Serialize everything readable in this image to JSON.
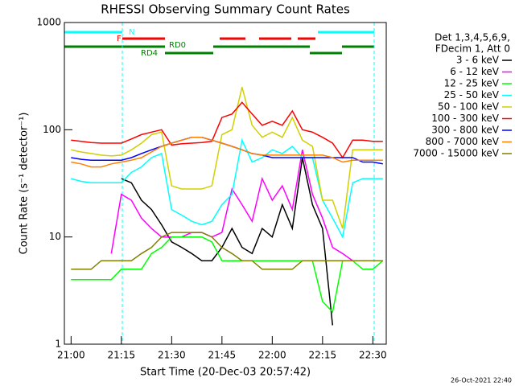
{
  "chart_data": {
    "type": "line",
    "title": "RHESSI Observing Summary Count Rates",
    "x_label": "Start Time (20-Dec-03 20:57:42)",
    "y_label": "Count Rate (s⁻¹ detector⁻¹)",
    "legend_header": [
      "Det 1,3,4,5,6,9,",
      "FDecim 1, Att 0"
    ],
    "annotations": {
      "N": "N",
      "F": "F",
      "RD0": "RD0",
      "RD4": "RD4",
      "date": "26-Oct-2021 22:40"
    },
    "log_y": true,
    "xlim": [
      "20:58",
      "22:34"
    ],
    "xticks": [
      "21:00",
      "21:15",
      "21:30",
      "21:45",
      "22:00",
      "22:15",
      "22:30"
    ],
    "ylim": [
      1,
      1000
    ],
    "yticks": [
      1,
      10,
      100,
      1000
    ],
    "x": [
      "21:00",
      "21:03",
      "21:06",
      "21:09",
      "21:12",
      "21:15",
      "21:18",
      "21:21",
      "21:24",
      "21:27",
      "21:30",
      "21:33",
      "21:36",
      "21:39",
      "21:42",
      "21:45",
      "21:48",
      "21:51",
      "21:54",
      "21:57",
      "22:00",
      "22:03",
      "22:06",
      "22:09",
      "22:12",
      "22:15",
      "22:18",
      "22:21",
      "22:24",
      "22:27",
      "22:30",
      "22:33"
    ],
    "series": [
      {
        "name": "3 - 6 keV",
        "color": "#000000",
        "values": [
          null,
          null,
          null,
          null,
          null,
          35,
          32,
          22,
          18,
          13,
          9,
          8,
          7,
          6,
          6,
          8,
          12,
          8,
          7,
          12,
          10,
          20,
          12,
          55,
          20,
          12,
          1.5,
          null,
          null,
          null,
          null,
          null
        ]
      },
      {
        "name": "6 - 12 keV",
        "color": "#ff00ff",
        "values": [
          null,
          null,
          null,
          null,
          7,
          25,
          22,
          15,
          12,
          10,
          10,
          10,
          11,
          11,
          10,
          11,
          28,
          20,
          14,
          35,
          22,
          30,
          18,
          65,
          25,
          15,
          8,
          7,
          6,
          6,
          6,
          6
        ]
      },
      {
        "name": "12 - 25 keV",
        "color": "#00ff00",
        "values": [
          4,
          4,
          4,
          4,
          4,
          5,
          5,
          5,
          7,
          8,
          10,
          10,
          10,
          10,
          9,
          6,
          6,
          6,
          6,
          6,
          6,
          6,
          6,
          6,
          6,
          2.5,
          2,
          6,
          6,
          5,
          5,
          6
        ]
      },
      {
        "name": "25 - 50 keV",
        "color": "#00ffff",
        "values": [
          35,
          33,
          32,
          32,
          32,
          32,
          40,
          45,
          55,
          60,
          18,
          16,
          14,
          13,
          14,
          20,
          25,
          80,
          50,
          55,
          65,
          60,
          70,
          55,
          55,
          22,
          15,
          10,
          32,
          35,
          35,
          35
        ]
      },
      {
        "name": "50 - 100 keV",
        "color": "#d0d000",
        "values": [
          65,
          62,
          60,
          58,
          57,
          58,
          65,
          75,
          90,
          95,
          30,
          28,
          28,
          28,
          30,
          90,
          100,
          250,
          110,
          85,
          95,
          85,
          130,
          80,
          70,
          22,
          22,
          12,
          65,
          65,
          65,
          65
        ]
      },
      {
        "name": "100 - 300 keV",
        "color": "#ff0000",
        "values": [
          80,
          78,
          76,
          75,
          75,
          75,
          82,
          90,
          95,
          100,
          72,
          74,
          75,
          76,
          78,
          130,
          140,
          180,
          140,
          110,
          120,
          110,
          150,
          100,
          95,
          85,
          75,
          55,
          80,
          80,
          78,
          78
        ]
      },
      {
        "name": "300 - 800 keV",
        "color": "#0000ff",
        "values": [
          55,
          53,
          52,
          52,
          52,
          52,
          55,
          60,
          65,
          70,
          75,
          80,
          85,
          85,
          80,
          75,
          70,
          65,
          60,
          58,
          55,
          55,
          55,
          55,
          55,
          55,
          55,
          55,
          55,
          50,
          50,
          48
        ]
      },
      {
        "name": "800 - 7000 keV",
        "color": "#ff8000",
        "values": [
          50,
          48,
          45,
          45,
          48,
          50,
          52,
          55,
          62,
          70,
          75,
          80,
          85,
          85,
          80,
          75,
          70,
          65,
          60,
          58,
          58,
          58,
          58,
          58,
          58,
          58,
          55,
          50,
          52,
          52,
          52,
          52
        ]
      },
      {
        "name": "7000 - 15000 keV",
        "color": "#808000",
        "values": [
          5,
          5,
          5,
          6,
          6,
          6,
          6,
          7,
          8,
          10,
          11,
          11,
          11,
          11,
          10,
          8,
          7,
          6,
          6,
          5,
          5,
          5,
          5,
          6,
          6,
          6,
          6,
          6,
          6,
          6,
          6,
          6
        ]
      }
    ]
  }
}
